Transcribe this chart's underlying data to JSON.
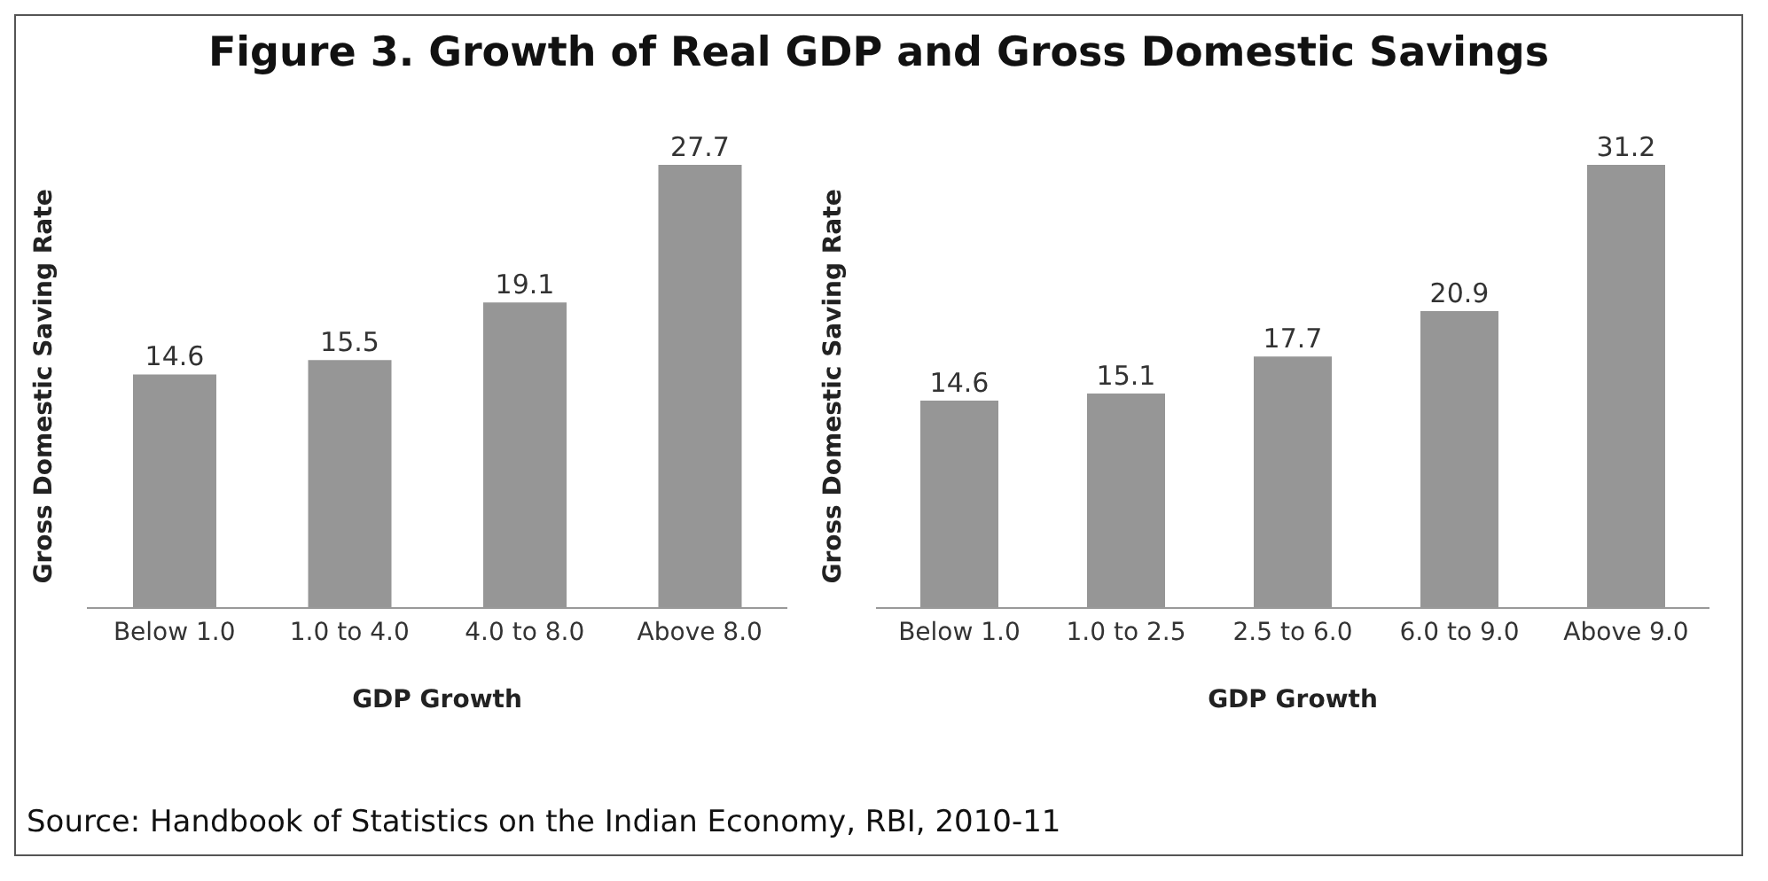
{
  "chart_data": [
    {
      "type": "bar",
      "title": "Figure 3. Growth of Real GDP and Gross Domestic Savings",
      "xlabel": "GDP Growth",
      "ylabel": "Gross Domestic Saving Rate",
      "categories": [
        "Below 1.0",
        "1.0 to 4.0",
        "4.0 to 8.0",
        "Above 8.0"
      ],
      "values": [
        14.6,
        15.5,
        19.1,
        27.7
      ],
      "color": "#969696",
      "data_labels": true,
      "annotations": [
        "Source: Handbook of Statistics on the Indian Economy, RBI, 2010-11"
      ]
    },
    {
      "type": "bar",
      "xlabel": "GDP Growth",
      "ylabel": "Gross Domestic Saving Rate",
      "categories": [
        "Below 1.0",
        "1.0 to 2.5",
        "2.5 to 6.0",
        "6.0 to 9.0",
        "Above 9.0"
      ],
      "values": [
        14.6,
        15.1,
        17.7,
        20.9,
        31.2
      ],
      "color": "#969696",
      "data_labels": true
    }
  ]
}
